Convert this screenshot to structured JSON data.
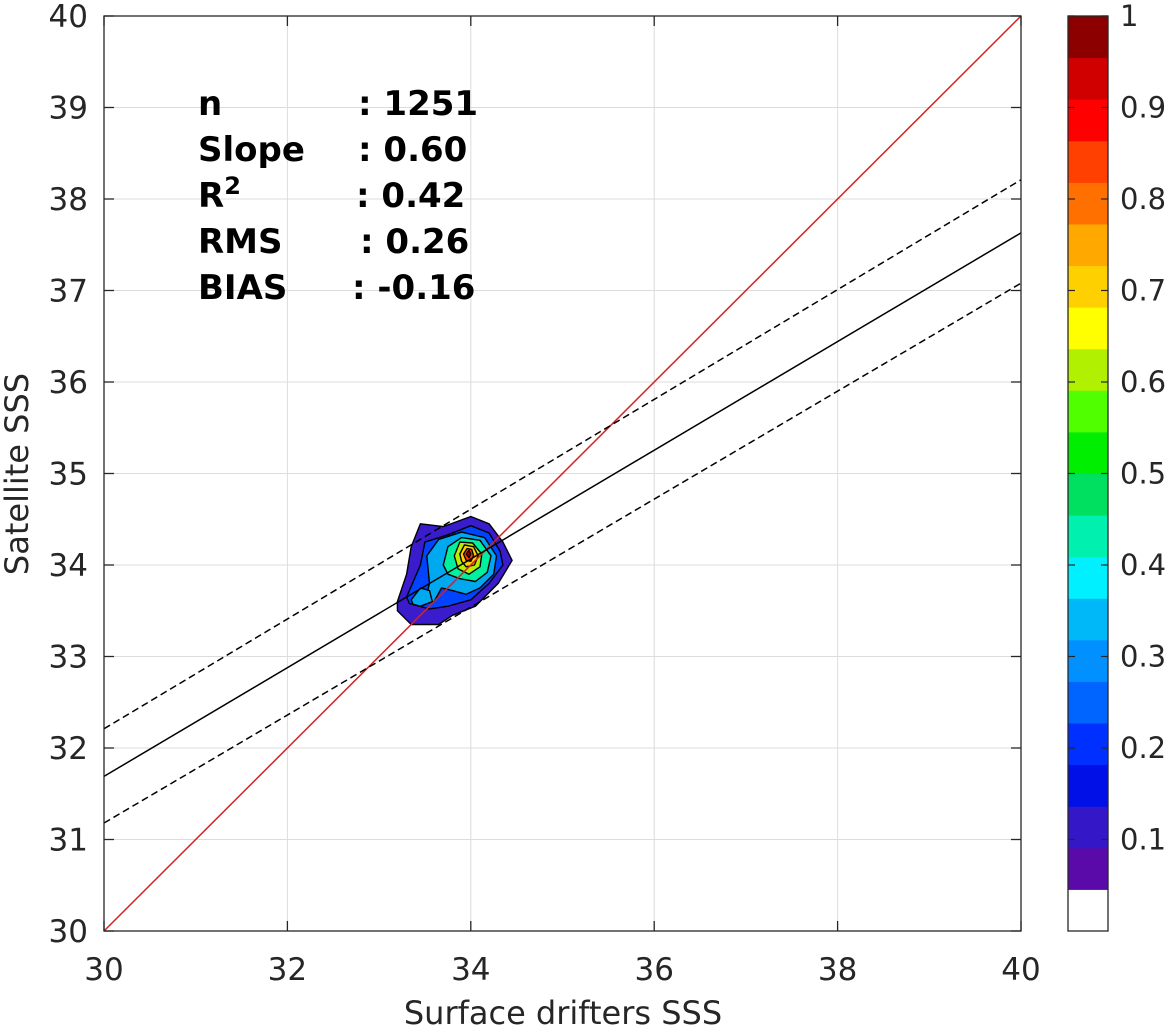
{
  "chart_data": {
    "type": "heatmap",
    "title": "",
    "xlabel": "Surface drifters SSS",
    "ylabel": "Satellite SSS",
    "xlim": [
      30,
      40
    ],
    "ylim": [
      30,
      40
    ],
    "xticks": [
      "30",
      "32",
      "34",
      "36",
      "38",
      "40"
    ],
    "yticks": [
      "30",
      "31",
      "32",
      "33",
      "34",
      "35",
      "36",
      "37",
      "38",
      "39",
      "40"
    ],
    "grid": true,
    "stats": [
      {
        "label": "n",
        "value": ": 1251"
      },
      {
        "label": "Slope",
        "value": ": 0.60"
      },
      {
        "label": "R",
        "sup": "2",
        "value": ": 0.42"
      },
      {
        "label": "RMS",
        "value": ": 0.26"
      },
      {
        "label": "BIAS",
        "value": ": -0.16"
      }
    ],
    "lines": [
      {
        "kind": "one-to-one",
        "color": "#d62222",
        "dash": "solid",
        "x": [
          30,
          40
        ],
        "y": [
          30,
          40
        ]
      },
      {
        "kind": "regression",
        "color": "#000000",
        "dash": "solid",
        "x": [
          30,
          40
        ],
        "y": [
          31.69,
          37.63
        ]
      },
      {
        "kind": "regression-upper",
        "color": "#000000",
        "dash": "dashed",
        "x": [
          30,
          40
        ],
        "y": [
          32.21,
          38.21
        ]
      },
      {
        "kind": "regression-lower",
        "color": "#000000",
        "dash": "dashed",
        "x": [
          30,
          40
        ],
        "y": [
          31.18,
          37.08
        ]
      }
    ],
    "density": {
      "center": [
        33.97,
        34.12
      ],
      "contours": [
        {
          "level": 0.05,
          "color": "#3a1ccc",
          "points": [
            [
              33.2,
              33.6
            ],
            [
              33.3,
              33.9
            ],
            [
              33.35,
              34.2
            ],
            [
              33.45,
              34.45
            ],
            [
              33.7,
              34.42
            ],
            [
              34.0,
              34.53
            ],
            [
              34.2,
              34.45
            ],
            [
              34.35,
              34.25
            ],
            [
              34.45,
              34.05
            ],
            [
              34.3,
              33.8
            ],
            [
              34.05,
              33.55
            ],
            [
              33.8,
              33.45
            ],
            [
              33.65,
              33.35
            ],
            [
              33.35,
              33.35
            ],
            [
              33.2,
              33.5
            ]
          ]
        },
        {
          "level": 0.2,
          "color": "#0044ff",
          "points": [
            [
              33.3,
              33.65
            ],
            [
              33.45,
              34.0
            ],
            [
              33.5,
              34.25
            ],
            [
              33.75,
              34.33
            ],
            [
              34.0,
              34.43
            ],
            [
              34.2,
              34.35
            ],
            [
              34.32,
              34.15
            ],
            [
              34.35,
              34.0
            ],
            [
              34.2,
              33.8
            ],
            [
              34.0,
              33.62
            ],
            [
              33.75,
              33.55
            ],
            [
              33.55,
              33.52
            ],
            [
              33.33,
              33.58
            ]
          ]
        },
        {
          "level": 0.3,
          "color": "#00a8f0",
          "points": [
            [
              33.5,
              33.6
            ],
            [
              33.55,
              33.8
            ],
            [
              33.52,
              34.1
            ],
            [
              33.65,
              34.28
            ],
            [
              33.9,
              34.36
            ],
            [
              34.15,
              34.3
            ],
            [
              34.28,
              34.1
            ],
            [
              34.25,
              33.9
            ],
            [
              34.1,
              33.75
            ],
            [
              33.95,
              33.68
            ],
            [
              33.8,
              33.72
            ],
            [
              33.68,
              33.75
            ],
            [
              33.6,
              33.6
            ]
          ]
        },
        {
          "level": 0.45,
          "color": "#00f0a0",
          "points": [
            [
              33.7,
              34.0
            ],
            [
              33.75,
              34.2
            ],
            [
              33.9,
              34.3
            ],
            [
              34.1,
              34.27
            ],
            [
              34.22,
              34.1
            ],
            [
              34.18,
              33.92
            ],
            [
              34.05,
              33.82
            ],
            [
              33.88,
              33.85
            ],
            [
              33.75,
              33.9
            ]
          ]
        },
        {
          "level": 0.6,
          "color": "#b6f000",
          "points": [
            [
              33.82,
              34.1
            ],
            [
              33.88,
              34.25
            ],
            [
              34.02,
              34.24
            ],
            [
              34.12,
              34.12
            ],
            [
              34.1,
              33.98
            ],
            [
              33.98,
              33.9
            ],
            [
              33.86,
              33.96
            ]
          ]
        },
        {
          "level": 0.7,
          "color": "#ffcc00",
          "points": [
            [
              33.88,
              34.12
            ],
            [
              33.93,
              34.22
            ],
            [
              34.03,
              34.2
            ],
            [
              34.08,
              34.1
            ],
            [
              34.04,
              34.0
            ],
            [
              33.95,
              33.98
            ],
            [
              33.9,
              34.04
            ]
          ]
        },
        {
          "level": 0.85,
          "color": "#ff3c00",
          "points": [
            [
              33.92,
              34.12
            ],
            [
              33.96,
              34.18
            ],
            [
              34.01,
              34.17
            ],
            [
              34.03,
              34.1
            ],
            [
              34.0,
              34.04
            ],
            [
              33.95,
              34.05
            ]
          ]
        },
        {
          "level": 0.95,
          "color": "#8c0000",
          "points": [
            [
              33.95,
              34.12
            ],
            [
              33.98,
              34.16
            ],
            [
              34.0,
              34.12
            ],
            [
              33.98,
              34.08
            ]
          ]
        }
      ],
      "secondary_blob": {
        "color": "#00a8f0",
        "points": [
          [
            33.35,
            33.62
          ],
          [
            33.45,
            33.75
          ],
          [
            33.55,
            33.72
          ],
          [
            33.58,
            33.6
          ],
          [
            33.45,
            33.55
          ],
          [
            33.37,
            33.57
          ]
        ]
      }
    },
    "colorbar": {
      "range": [
        0,
        1
      ],
      "ticks": [
        "0.1",
        "0.2",
        "0.3",
        "0.4",
        "0.5",
        "0.6",
        "0.7",
        "0.8",
        "0.9",
        "1"
      ],
      "tick_values": [
        0.1,
        0.2,
        0.3,
        0.4,
        0.5,
        0.6,
        0.7,
        0.8,
        0.9,
        1.0
      ],
      "bins": [
        "#ffffff",
        "#5a0aa8",
        "#3418c8",
        "#0010e6",
        "#0030ff",
        "#0064ff",
        "#0090ff",
        "#00b8f8",
        "#00f0ff",
        "#00f0b0",
        "#00e060",
        "#00ee00",
        "#50ff00",
        "#b0f000",
        "#ffff00",
        "#ffd000",
        "#ffa800",
        "#ff7000",
        "#ff4000",
        "#ff0000",
        "#d00000",
        "#8c0000"
      ]
    }
  }
}
